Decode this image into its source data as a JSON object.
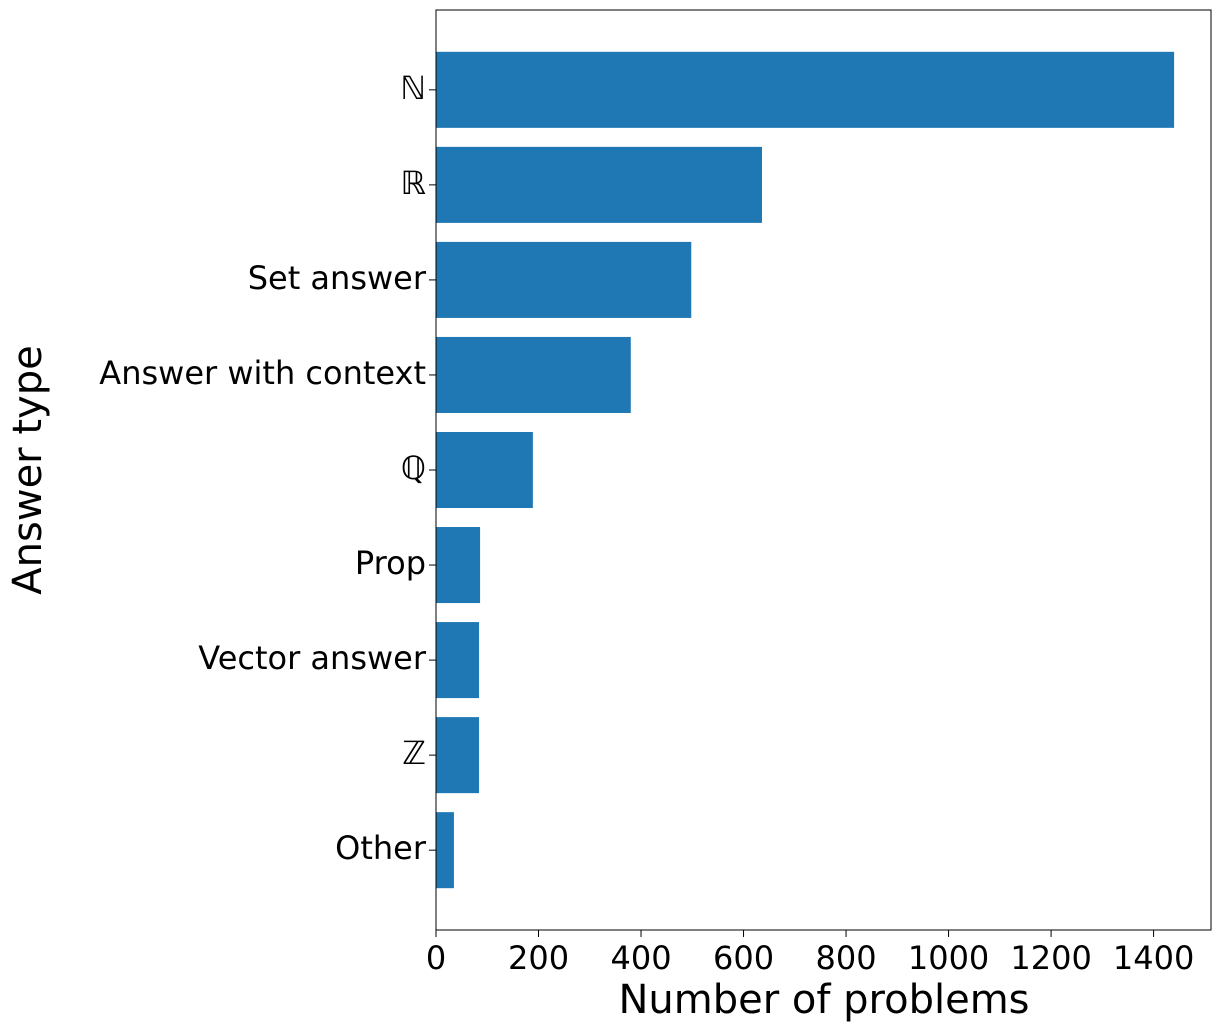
{
  "chart_data": {
    "type": "barh",
    "x_label": "Number of problems",
    "y_label": "Answer type",
    "categories": [
      "ℕ",
      "ℝ",
      "Set answer",
      "Answer with context",
      "ℚ",
      "Prop",
      "Vector answer",
      "ℤ",
      "Other"
    ],
    "values": [
      1440,
      636,
      498,
      380,
      189,
      86,
      84,
      84,
      35
    ],
    "color": "#1f77b4",
    "xlim": [
      0,
      1512
    ],
    "xticks": [
      0,
      200,
      400,
      600,
      800,
      1000,
      1200,
      1400
    ]
  }
}
